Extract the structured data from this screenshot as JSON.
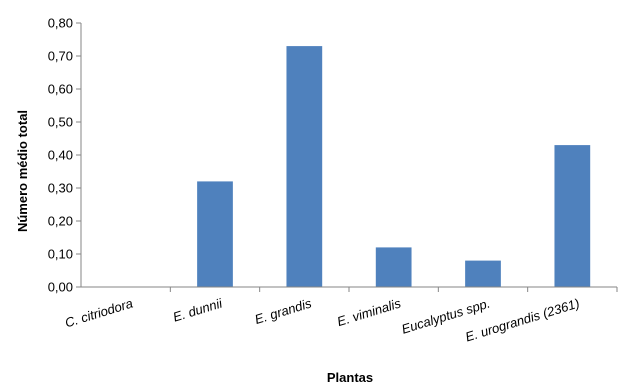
{
  "chart_data": {
    "type": "bar",
    "categories": [
      "C. citriodora",
      "E. dunnii",
      "E. grandis",
      "E. viminalis",
      "Eucalyptus spp.",
      "E. urograndis (2361)"
    ],
    "values": [
      0.0,
      0.32,
      0.73,
      0.12,
      0.08,
      0.43
    ],
    "xlabel": "Plantas",
    "ylabel": "Número médio total",
    "ylim": [
      0,
      0.8
    ],
    "yticks": [
      "0,00",
      "0,10",
      "0,20",
      "0,30",
      "0,40",
      "0,50",
      "0,60",
      "0,70",
      "0,80"
    ],
    "bar_color": "#4F81BD",
    "grid": false,
    "legend": "none"
  }
}
